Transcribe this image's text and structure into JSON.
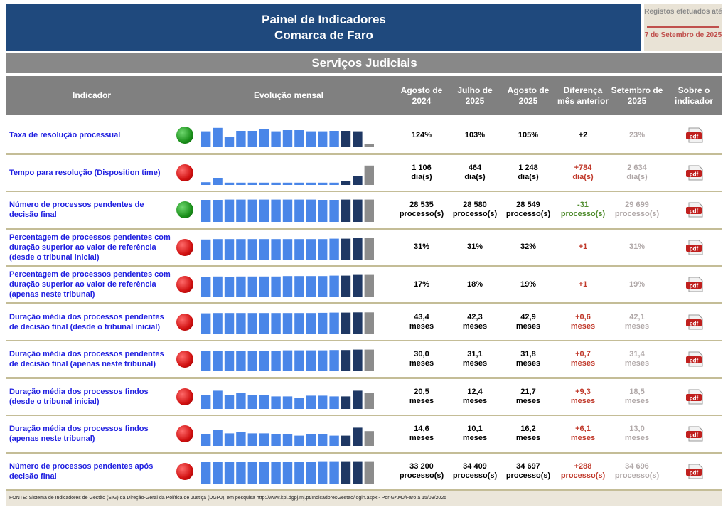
{
  "header": {
    "title_line1": "Painel de Indicadores",
    "title_line2": "Comarca de Faro"
  },
  "registos": {
    "label": "Registos efetuados até",
    "date": "7 de Setembro de 2025"
  },
  "section_title": "Serviços Judiciais",
  "columns": {
    "indicador": "Indicador",
    "evolucao": "Evolução mensal",
    "col1": "Agosto de 2024",
    "col2": "Julho de 2025",
    "col3": "Agosto de 2025",
    "col4": "Diferença mês anterior",
    "col5": "Setembro de 2025",
    "col6": "Sobre o indicador"
  },
  "colors": {
    "header_bg": "#1f497d",
    "bar_light": "#4a86e8",
    "bar_dark": "#1f3864",
    "bar_gray": "#8c8c8c",
    "green": "#1a8f1a",
    "red": "#d01010",
    "diff_red": "#c0392b",
    "diff_green": "#4e8b2c"
  },
  "rows": [
    {
      "label": "Taxa de resolução processual",
      "status": "green",
      "bars": [
        0.7,
        0.85,
        0.45,
        0.72,
        0.72,
        0.8,
        0.7,
        0.75,
        0.75,
        0.7,
        0.7,
        0.72,
        0.72,
        0.7,
        0.15
      ],
      "v1": "124%",
      "v2": "103%",
      "v3": "105%",
      "v4": "+2",
      "v4_color": "black",
      "v5": "23%"
    },
    {
      "label": "Tempo para resolução (Disposition time)",
      "status": "red",
      "bars": [
        0.12,
        0.3,
        0.1,
        0.1,
        0.1,
        0.1,
        0.1,
        0.1,
        0.1,
        0.1,
        0.1,
        0.1,
        0.16,
        0.4,
        0.85
      ],
      "v1": "1 106\ndia(s)",
      "v2": "464\ndia(s)",
      "v3": "1 248\ndia(s)",
      "v4": "+784\ndia(s)",
      "v4_color": "red",
      "v5": "2 634\ndia(s)"
    },
    {
      "label": "Número de processos pendentes de decisão final",
      "status": "green",
      "bars": [
        0.97,
        0.97,
        0.98,
        0.98,
        0.98,
        0.98,
        0.98,
        0.98,
        0.98,
        0.98,
        0.97,
        0.97,
        0.98,
        0.98,
        0.98
      ],
      "v1": "28 535\nprocesso(s)",
      "v2": "28 580\nprocesso(s)",
      "v3": "28 549\nprocesso(s)",
      "v4": "-31\nprocesso(s)",
      "v4_color": "green",
      "v5": "29 699\nprocesso(s)"
    },
    {
      "label": "Percentagem de processos pendentes com duração superior ao valor de referência (desde o tribunal inicial)",
      "status": "red",
      "bars": [
        0.88,
        0.9,
        0.9,
        0.9,
        0.9,
        0.9,
        0.9,
        0.9,
        0.9,
        0.9,
        0.9,
        0.92,
        0.92,
        0.95,
        0.95
      ],
      "v1": "31%",
      "v2": "31%",
      "v3": "32%",
      "v4": "+1",
      "v4_color": "red",
      "v5": "31%"
    },
    {
      "label": "Percentagem de processos pendentes com duração superior ao valor de referência (apenas neste tribunal)",
      "status": "red",
      "bars": [
        0.85,
        0.88,
        0.85,
        0.88,
        0.88,
        0.88,
        0.88,
        0.9,
        0.9,
        0.9,
        0.9,
        0.92,
        0.92,
        0.95,
        0.95
      ],
      "v1": "17%",
      "v2": "18%",
      "v3": "19%",
      "v4": "+1",
      "v4_color": "red",
      "v5": "19%"
    },
    {
      "label": "Duração média dos processos pendentes de decisão final (desde o tribunal inicial)",
      "status": "red",
      "bars": [
        0.92,
        0.93,
        0.93,
        0.93,
        0.93,
        0.93,
        0.93,
        0.93,
        0.93,
        0.93,
        0.94,
        0.95,
        0.95,
        0.96,
        0.96
      ],
      "v1": "43,4\nmeses",
      "v2": "42,3\nmeses",
      "v3": "42,9\nmeses",
      "v4": "+0,6\nmeses",
      "v4_color": "red",
      "v5": "42,1\nmeses"
    },
    {
      "label": "Duração média dos processos pendentes de decisão final (apenas neste tribunal)",
      "status": "red",
      "bars": [
        0.88,
        0.89,
        0.89,
        0.9,
        0.9,
        0.9,
        0.9,
        0.92,
        0.92,
        0.92,
        0.92,
        0.93,
        0.93,
        0.95,
        0.95
      ],
      "v1": "30,0\nmeses",
      "v2": "31,1\nmeses",
      "v3": "31,8\nmeses",
      "v4": "+0,7\nmeses",
      "v4_color": "red",
      "v5": "31,4\nmeses"
    },
    {
      "label": "Duração média dos processos findos (desde o tribunal inicial)",
      "status": "red",
      "bars": [
        0.6,
        0.8,
        0.62,
        0.7,
        0.62,
        0.6,
        0.55,
        0.55,
        0.5,
        0.58,
        0.58,
        0.55,
        0.55,
        0.8,
        0.7
      ],
      "v1": "20,5\nmeses",
      "v2": "12,4\nmeses",
      "v3": "21,7\nmeses",
      "v4": "+9,3\nmeses",
      "v4_color": "red",
      "v5": "18,5\nmeses"
    },
    {
      "label": "Duração média dos processos findos (apenas neste tribunal)",
      "status": "red",
      "bars": [
        0.5,
        0.7,
        0.55,
        0.62,
        0.55,
        0.55,
        0.5,
        0.5,
        0.45,
        0.5,
        0.5,
        0.45,
        0.45,
        0.8,
        0.65
      ],
      "v1": "14,6\nmeses",
      "v2": "10,1\nmeses",
      "v3": "16,2\nmeses",
      "v4": "+6,1\nmeses",
      "v4_color": "red",
      "v5": "13,0\nmeses"
    },
    {
      "label": "Número de processos pendentes após decisão final",
      "status": "red",
      "bars": [
        0.95,
        0.96,
        0.96,
        0.96,
        0.96,
        0.96,
        0.97,
        0.97,
        0.97,
        0.97,
        0.98,
        0.98,
        0.98,
        0.98,
        0.98
      ],
      "v1": "33 200\nprocesso(s)",
      "v2": "34 409\nprocesso(s)",
      "v3": "34 697\nprocesso(s)",
      "v4": "+288\nprocesso(s)",
      "v4_color": "red",
      "v5": "34 696\nprocesso(s)"
    }
  ],
  "pdf_label": "pdf",
  "footer": "FONTE: Sistema de Indicadores de Gestão (SIG) da Direção-Geral da Política de Justiça (DGPJ), em pesquisa http://www.kpi.dgpj.mj.pt/IndicadoresGestao/login.aspx - Por GAMJ/Faro a 15/09/2025"
}
